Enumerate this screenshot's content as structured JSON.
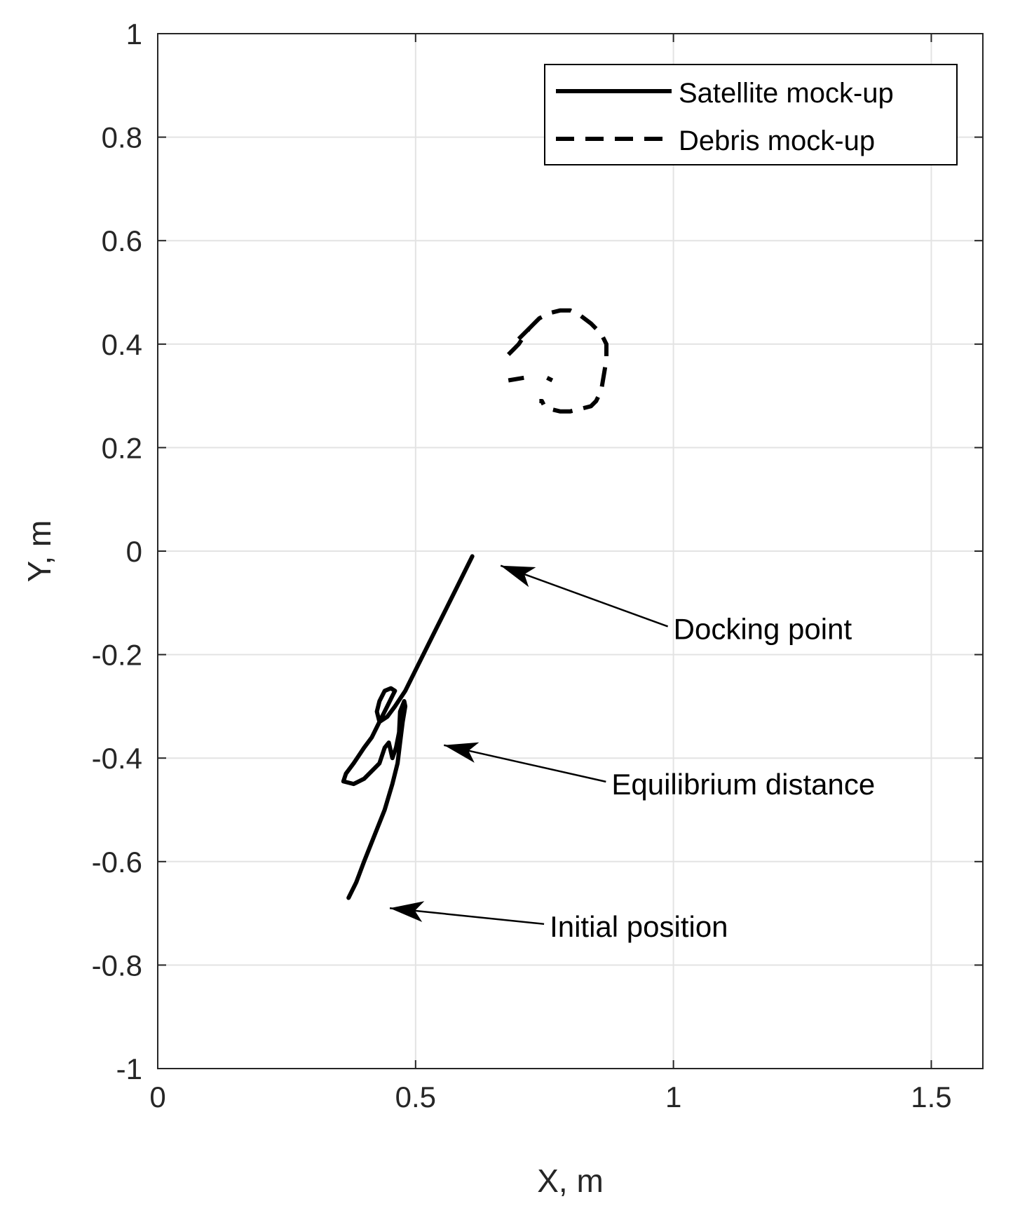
{
  "chart_data": {
    "type": "line",
    "title": "",
    "xlabel": "X, m",
    "ylabel": "Y, m",
    "xlim": [
      0,
      1.6
    ],
    "ylim": [
      -1,
      1
    ],
    "xticks": [
      0,
      0.5,
      1,
      1.5
    ],
    "xtick_labels": [
      "0",
      "0.5",
      "1",
      "1.5"
    ],
    "yticks": [
      -1,
      -0.8,
      -0.6,
      -0.4,
      -0.2,
      0,
      0.2,
      0.4,
      0.6,
      0.8,
      1
    ],
    "ytick_labels": [
      "-1",
      "-0.8",
      "-0.6",
      "-0.4",
      "-0.2",
      "0",
      "0.2",
      "0.4",
      "0.6",
      "0.8",
      "1"
    ],
    "grid": true,
    "legend_position": "top-right",
    "series": [
      {
        "name": "Satellite mock-up",
        "style": "solid",
        "color": "#000000",
        "x": [
          0.37,
          0.385,
          0.4,
          0.42,
          0.44,
          0.455,
          0.465,
          0.47,
          0.475,
          0.48,
          0.478,
          0.47,
          0.468,
          0.462,
          0.455,
          0.448,
          0.44,
          0.43,
          0.42,
          0.4,
          0.38,
          0.36,
          0.365,
          0.38,
          0.4,
          0.415,
          0.43,
          0.445,
          0.455,
          0.46,
          0.452,
          0.44,
          0.43,
          0.425,
          0.43,
          0.445,
          0.46,
          0.48,
          0.5,
          0.52,
          0.54,
          0.56,
          0.58,
          0.6,
          0.61
        ],
        "y": [
          -0.67,
          -0.64,
          -0.6,
          -0.55,
          -0.5,
          -0.45,
          -0.41,
          -0.37,
          -0.33,
          -0.3,
          -0.29,
          -0.31,
          -0.35,
          -0.38,
          -0.4,
          -0.37,
          -0.38,
          -0.41,
          -0.42,
          -0.44,
          -0.45,
          -0.445,
          -0.43,
          -0.41,
          -0.38,
          -0.36,
          -0.33,
          -0.3,
          -0.28,
          -0.27,
          -0.265,
          -0.27,
          -0.29,
          -0.31,
          -0.33,
          -0.32,
          -0.3,
          -0.27,
          -0.23,
          -0.19,
          -0.15,
          -0.11,
          -0.07,
          -0.03,
          -0.01
        ]
      },
      {
        "name": "Debris mock-up",
        "style": "dashed",
        "color": "#000000",
        "x": [
          0.68,
          0.69,
          0.7,
          0.72,
          0.74,
          0.76,
          0.78,
          0.8,
          0.82,
          0.84,
          0.86,
          0.87,
          0.87,
          0.865,
          0.86,
          0.85,
          0.84,
          0.82,
          0.8,
          0.78,
          0.76,
          0.75,
          0.745,
          0.74
        ],
        "y": [
          0.38,
          0.39,
          0.4,
          0.43,
          0.45,
          0.46,
          0.465,
          0.465,
          0.455,
          0.44,
          0.42,
          0.4,
          0.37,
          0.34,
          0.31,
          0.29,
          0.28,
          0.275,
          0.27,
          0.27,
          0.275,
          0.28,
          0.29,
          0.29
        ]
      }
    ],
    "extra_marks": [
      {
        "series": "Debris mock-up",
        "x": [
          0.68,
          0.71
        ],
        "y": [
          0.33,
          0.335
        ]
      },
      {
        "series": "Debris mock-up",
        "x": [
          0.755,
          0.765
        ],
        "y": [
          0.335,
          0.33
        ]
      },
      {
        "series": "Debris mock-up",
        "x": [
          0.7,
          0.72
        ],
        "y": [
          0.41,
          0.43
        ]
      }
    ],
    "annotations": [
      {
        "text": "Docking point",
        "text_x": 1.0,
        "text_y": -0.17,
        "arrow_x": 0.665,
        "arrow_y": -0.028
      },
      {
        "text": "Equilibrium distance",
        "text_x": 0.88,
        "text_y": -0.47,
        "arrow_x": 0.555,
        "arrow_y": -0.375
      },
      {
        "text": "Initial position",
        "text_x": 0.76,
        "text_y": -0.745,
        "arrow_x": 0.45,
        "arrow_y": -0.69
      }
    ]
  }
}
